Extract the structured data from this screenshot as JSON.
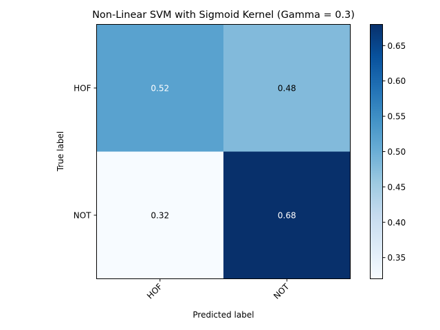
{
  "chart_data": {
    "type": "heatmap",
    "title": "Non-Linear SVM with Sigmoid Kernel (Gamma = 0.3)",
    "xlabel": "Predicted label",
    "ylabel": "True label",
    "x_categories": [
      "HOF",
      "NOT"
    ],
    "y_categories": [
      "HOF",
      "NOT"
    ],
    "values": [
      [
        0.52,
        0.48
      ],
      [
        0.32,
        0.68
      ]
    ],
    "value_labels": [
      [
        "0.52",
        "0.48"
      ],
      [
        "0.32",
        "0.68"
      ]
    ],
    "colormap": "Blues",
    "vmin": 0.32,
    "vmax": 0.68,
    "colorbar_ticks": [
      "0.35",
      "0.40",
      "0.45",
      "0.50",
      "0.55",
      "0.60",
      "0.65"
    ],
    "colorbar_tick_values": [
      0.35,
      0.4,
      0.45,
      0.5,
      0.55,
      0.6,
      0.65
    ],
    "grid": false
  }
}
